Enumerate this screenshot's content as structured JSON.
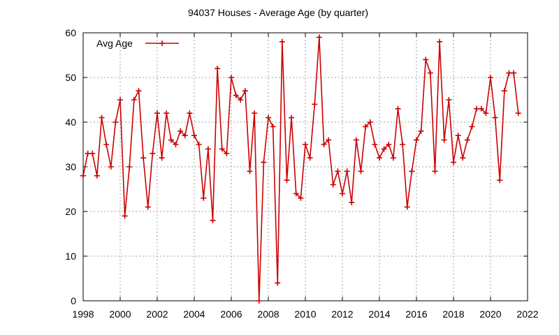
{
  "chart_data": {
    "type": "line",
    "title": "94037 Houses - Average Age (by quarter)",
    "xlabel": "",
    "ylabel": "",
    "xlim": [
      1998,
      2022
    ],
    "ylim": [
      0,
      60
    ],
    "xticks": [
      1998,
      2000,
      2002,
      2004,
      2006,
      2008,
      2010,
      2012,
      2014,
      2016,
      2018,
      2020,
      2022
    ],
    "yticks": [
      0,
      10,
      20,
      30,
      40,
      50,
      60
    ],
    "grid": true,
    "legend_position": "top-left",
    "series": [
      {
        "name": "Avg Age",
        "color": "#cc0000",
        "marker": "plus",
        "x": [
          1998.0,
          1998.25,
          1998.5,
          1998.75,
          1999.0,
          1999.25,
          1999.5,
          1999.75,
          2000.0,
          2000.25,
          2000.5,
          2000.75,
          2001.0,
          2001.25,
          2001.5,
          2001.75,
          2002.0,
          2002.25,
          2002.5,
          2002.75,
          2003.0,
          2003.25,
          2003.5,
          2003.75,
          2004.0,
          2004.25,
          2004.5,
          2004.75,
          2005.0,
          2005.25,
          2005.5,
          2005.75,
          2006.0,
          2006.25,
          2006.5,
          2006.75,
          2007.0,
          2007.25,
          2007.5,
          2007.75,
          2008.0,
          2008.25,
          2008.5,
          2008.75,
          2009.0,
          2009.25,
          2009.5,
          2009.75,
          2010.0,
          2010.25,
          2010.5,
          2010.75,
          2011.0,
          2011.25,
          2011.5,
          2011.75,
          2012.0,
          2012.25,
          2012.5,
          2012.75,
          2013.0,
          2013.25,
          2013.5,
          2013.75,
          2014.0,
          2014.25,
          2014.5,
          2014.75,
          2015.0,
          2015.25,
          2015.5,
          2015.75,
          2016.0,
          2016.25,
          2016.5,
          2016.75,
          2017.0,
          2017.25,
          2017.5,
          2017.75,
          2018.0,
          2018.25,
          2018.5,
          2018.75,
          2019.0,
          2019.25,
          2019.5,
          2019.75,
          2020.0,
          2020.25,
          2020.5,
          2020.75,
          2021.0,
          2021.25,
          2021.5
        ],
        "values": [
          28,
          33,
          33,
          28,
          41,
          35,
          30,
          40,
          45,
          19,
          30,
          45,
          47,
          32,
          21,
          33,
          42,
          32,
          42,
          36,
          35,
          38,
          37,
          42,
          37,
          35,
          23,
          34,
          18,
          52,
          34,
          33,
          50,
          46,
          45,
          47,
          29,
          42,
          0,
          31,
          41,
          39,
          4,
          58,
          27,
          41,
          24,
          23,
          35,
          32,
          44,
          59,
          35,
          36,
          26,
          29,
          24,
          29,
          22,
          36,
          29,
          39,
          40,
          35,
          32,
          34,
          35,
          32,
          43,
          35,
          21,
          29,
          36,
          38,
          54,
          51,
          29,
          58,
          36,
          45,
          31,
          37,
          32,
          36,
          39,
          43,
          43,
          42,
          50,
          41,
          27,
          47,
          51,
          51,
          42
        ]
      }
    ]
  }
}
